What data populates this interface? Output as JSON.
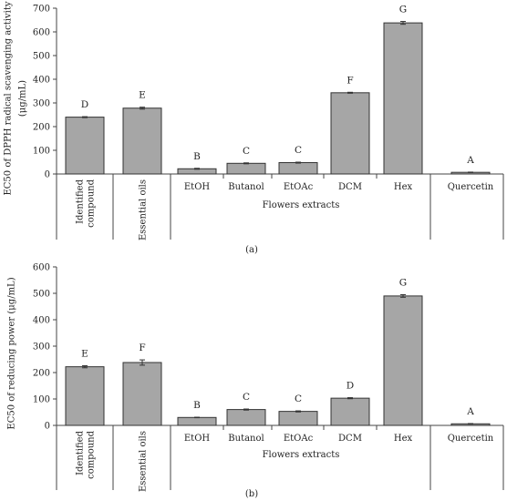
{
  "chart_data": [
    {
      "type": "bar",
      "panel_label": "(a)",
      "categories": [
        "Identified compound",
        "Essential oils",
        "EtOH",
        "Butanol",
        "EtOAc",
        "DCM",
        "Hex",
        "Quercetin"
      ],
      "category_lines": [
        [
          "Identified",
          "compound"
        ],
        [
          "Essential oils"
        ],
        [
          "EtOH"
        ],
        [
          "Butanol"
        ],
        [
          "EtOAc"
        ],
        [
          "DCM"
        ],
        [
          "Hex"
        ],
        [
          "Quercetin"
        ]
      ],
      "values": [
        240,
        278,
        22,
        45,
        48,
        343,
        638,
        7
      ],
      "errors": [
        2,
        4,
        2,
        2,
        2,
        2,
        6,
        1
      ],
      "letters": [
        "D",
        "E",
        "B",
        "C",
        "C",
        "F",
        "G",
        "A"
      ],
      "ylabel": "EC50 of DPPH radical scavenging activity",
      "ylabel2": "(μg/mL)",
      "group_label": "Flowers extracts",
      "ylim": [
        0,
        700
      ],
      "yticks": [
        0,
        100,
        200,
        300,
        400,
        500,
        600,
        700
      ],
      "bar_color": "#a6a6a6"
    },
    {
      "type": "bar",
      "panel_label": "(b)",
      "categories": [
        "Identified compound",
        "Essential oils",
        "EtOH",
        "Butanol",
        "EtOAc",
        "DCM",
        "Hex",
        "Quercetin"
      ],
      "category_lines": [
        [
          "Identified",
          "compound"
        ],
        [
          "Essential oils"
        ],
        [
          "EtOH"
        ],
        [
          "Butanol"
        ],
        [
          "EtOAc"
        ],
        [
          "DCM"
        ],
        [
          "Hex"
        ],
        [
          "Quercetin"
        ]
      ],
      "values": [
        222,
        238,
        30,
        60,
        53,
        103,
        490,
        6
      ],
      "errors": [
        4,
        10,
        1,
        2,
        2,
        2,
        5,
        1
      ],
      "letters": [
        "E",
        "F",
        "B",
        "C",
        "C",
        "D",
        "G",
        "A"
      ],
      "ylabel": "EC50 of reducing power (μg/mL)",
      "ylabel2": "",
      "group_label": "Flowers extracts",
      "ylim": [
        0,
        600
      ],
      "yticks": [
        0,
        100,
        200,
        300,
        400,
        500,
        600
      ],
      "bar_color": "#a6a6a6"
    }
  ]
}
